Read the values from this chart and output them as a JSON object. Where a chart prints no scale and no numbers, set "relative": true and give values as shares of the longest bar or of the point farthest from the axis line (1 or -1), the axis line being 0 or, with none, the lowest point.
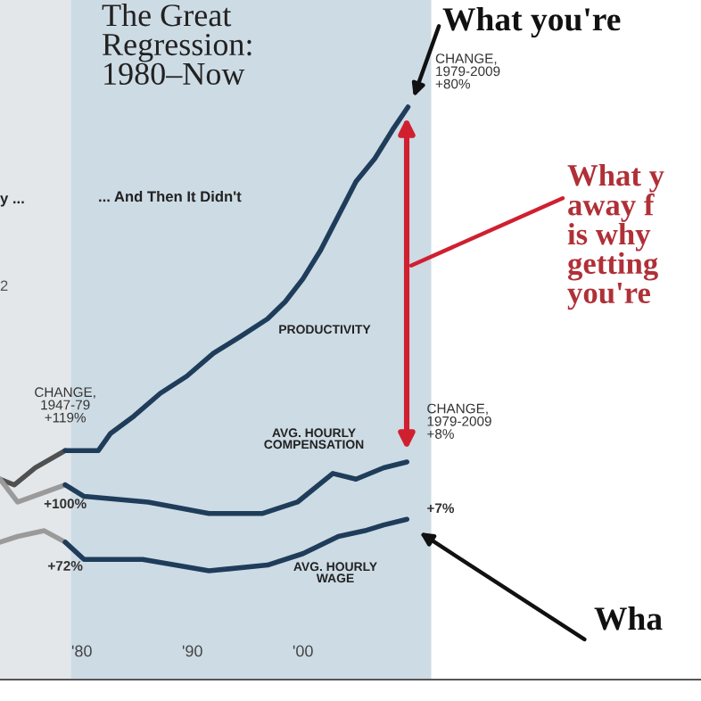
{
  "chart_data": {
    "type": "line",
    "relative": true,
    "title": "The Great\nRegression:\n1980–Now",
    "subtitle": "... And Then It Didn't",
    "xlim": [
      1972.6,
      2036
    ],
    "xticks": [
      {
        "value": 1980,
        "label": "'80"
      },
      {
        "value": 1990,
        "label": "'90"
      },
      {
        "value": 2000,
        "label": "'00"
      }
    ],
    "tick_labels": "x",
    "grid": false,
    "legend": false,
    "bands": [
      {
        "axis": "x",
        "from": 1972.6,
        "to": 1979.0,
        "color": "#e3e7e9"
      },
      {
        "axis": "x",
        "from": 1979.0,
        "to": 2011.6,
        "color": "#cddbe4"
      }
    ],
    "series": [
      {
        "color": "#505050",
        "x": [
          1972.6,
          1973.9,
          1975.8,
          1978.5
        ],
        "values": [
          0.35,
          0.34,
          0.37,
          0.4
        ]
      },
      {
        "name": "PRODUCTIVITY",
        "color": "#1f3d5a",
        "x": [
          1978.5,
          1979.8,
          1981.5,
          1982.6,
          1984.7,
          1987.1,
          1989.5,
          1991.9,
          1994.4,
          1996.8,
          1998.4,
          2000.0,
          2001.6,
          2003.2,
          2004.8,
          2006.5,
          2008.1,
          2009.5
        ],
        "values": [
          0.4,
          0.4,
          0.4,
          0.43,
          0.46,
          0.5,
          0.53,
          0.57,
          0.6,
          0.63,
          0.66,
          0.7,
          0.75,
          0.81,
          0.87,
          0.91,
          0.96,
          1.0
        ]
      },
      {
        "color": "#9a9a9a",
        "x": [
          1972.6,
          1974.2,
          1978.5
        ],
        "values": [
          0.35,
          0.31,
          0.34
        ]
      },
      {
        "name": "AVG. HOURLY\nCOMPENSATION",
        "color": "#1f3d5a",
        "x": [
          1978.5,
          1980.2,
          1986.0,
          1991.5,
          1996.3,
          1999.5,
          2002.7,
          2004.8,
          2007.3,
          2009.4
        ],
        "values": [
          0.34,
          0.32,
          0.31,
          0.29,
          0.29,
          0.31,
          0.36,
          0.35,
          0.37,
          0.38
        ]
      },
      {
        "color": "#9a9a9a",
        "x": [
          1972.6,
          1974.2,
          1976.6,
          1978.5
        ],
        "values": [
          0.24,
          0.25,
          0.26,
          0.24
        ]
      },
      {
        "name": "AVG. HOURLY\nWAGE",
        "color": "#1f3d5a",
        "x": [
          1978.5,
          1980.2,
          1985.5,
          1991.5,
          1996.8,
          2000.0,
          2003.2,
          2005.6,
          2007.3,
          2009.4
        ],
        "values": [
          0.24,
          0.21,
          0.21,
          0.19,
          0.2,
          0.22,
          0.25,
          0.26,
          0.27,
          0.28
        ]
      }
    ],
    "annotations": [
      "y ...",
      "2",
      {
        "text": "CHANGE,\n1947-79\n+119%",
        "x": 1978.5,
        "y": 0.4
      },
      {
        "text": "+100%",
        "x": 1978.5,
        "y": 0.34
      },
      {
        "text": "+72%",
        "x": 1978.5,
        "y": 0.24
      },
      {
        "text": "CHANGE,\n1979-2009\n+80%",
        "x": 2009.5,
        "y": 1.0
      },
      {
        "text": "CHANGE,\n1979-2009\n+8%",
        "x": 2009.4,
        "y": 0.38
      },
      {
        "text": "+7%",
        "x": 2009.4,
        "y": 0.28
      },
      "What you're",
      "What y\naway f\nis why\ngetting\nyou're",
      "Wha"
    ]
  }
}
